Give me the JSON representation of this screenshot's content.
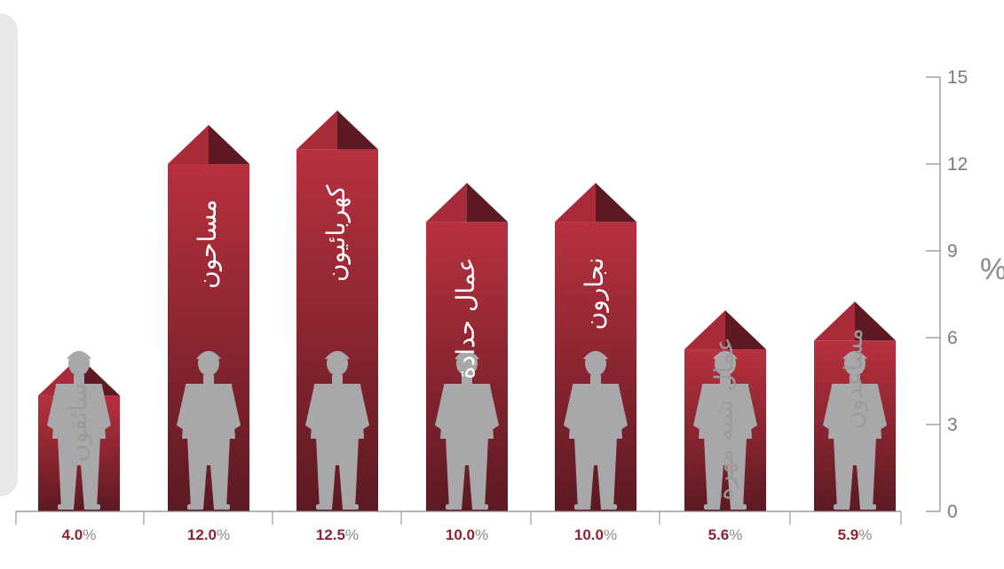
{
  "chart_data": {
    "type": "bar",
    "categories": [
      "سائقون",
      "مساحون",
      "كهربائيون",
      "عمال حدادة",
      "نجارون",
      "عمال شبه مهرة",
      "مساعدون"
    ],
    "values": [
      4.0,
      12.0,
      12.5,
      10.0,
      10.0,
      5.6,
      5.9
    ],
    "value_labels": [
      "4.0",
      "12.0",
      "12.5",
      "10.0",
      "10.0",
      "5.6",
      "5.9"
    ],
    "value_suffix": "%",
    "ylim": [
      0,
      15
    ],
    "yticks": [
      0,
      3,
      6,
      9,
      12,
      15
    ],
    "ylabel": "%",
    "y_axis_position": "right",
    "grid": false,
    "legend": "none",
    "icons": [
      "driver-silhouette-icon",
      "surveyor-silhouette-icon",
      "electrician-silhouette-icon",
      "ironworker-silhouette-icon",
      "carpenter-silhouette-icon",
      "semiskilled-worker-silhouette-icon",
      "helper-silhouette-icon"
    ],
    "colors": {
      "bar_top": "#b8313f",
      "bar_bottom": "#5c1a22",
      "arrow_light": "#a82b3a",
      "arrow_dark": "#5e1a22",
      "label_on_bar": "#ffffff",
      "label_off_bar": "#9a9a9a",
      "figure": "#a8a8aa",
      "value_number": "#8c2331",
      "axis": "#8a8a8a"
    }
  }
}
